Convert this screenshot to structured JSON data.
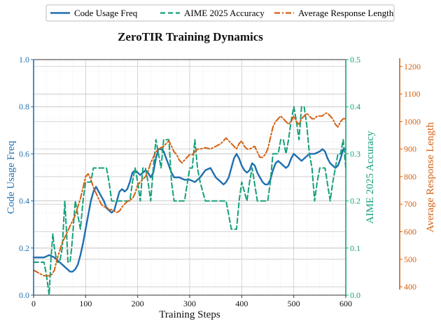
{
  "colors": {
    "code_usage": "#1f6fb0",
    "aime": "#15a07a",
    "response_length": "#d4600f",
    "grid_major": "#c8c8c8",
    "grid_minor": "#ececec",
    "axis": "#333333"
  },
  "chart_data": {
    "type": "line",
    "title": "ZeroTIR Training Dynamics",
    "xlabel": "Training Steps",
    "xlim": [
      0,
      600
    ],
    "x_ticks": [
      "0",
      "100",
      "200",
      "300",
      "400",
      "500",
      "600"
    ],
    "grid": true,
    "legend_position": "top",
    "axes": {
      "left": {
        "label": "Code Usage Freq",
        "ylim": [
          0.0,
          1.0
        ],
        "ticks": [
          "0.0",
          "0.2",
          "0.4",
          "0.6",
          "0.8",
          "1.0"
        ]
      },
      "right_inner": {
        "label": "AIME 2025 Accuracy",
        "ylim": [
          0.0,
          0.5
        ],
        "ticks": [
          "0.0",
          "0.1",
          "0.2",
          "0.3",
          "0.4",
          "0.5"
        ]
      },
      "right_outer": {
        "label": "Average Response Length",
        "ylim": [
          390,
          1230
        ],
        "ticks": [
          "400",
          "500",
          "600",
          "700",
          "800",
          "900",
          "1000",
          "1100",
          "1200"
        ]
      }
    },
    "series": [
      {
        "name": "Code Usage Freq",
        "axis": "left",
        "style": "solid",
        "color": "#1f6fb0",
        "x": [
          0,
          10,
          20,
          30,
          40,
          50,
          60,
          70,
          75,
          80,
          85,
          90,
          95,
          100,
          105,
          110,
          115,
          120,
          125,
          130,
          135,
          140,
          145,
          150,
          155,
          160,
          165,
          170,
          175,
          180,
          185,
          190,
          195,
          200,
          205,
          210,
          215,
          220,
          225,
          230,
          235,
          240,
          245,
          250,
          255,
          260,
          265,
          270,
          280,
          290,
          300,
          310,
          320,
          330,
          340,
          350,
          360,
          365,
          370,
          375,
          380,
          385,
          390,
          395,
          400,
          405,
          410,
          415,
          420,
          425,
          430,
          435,
          440,
          445,
          450,
          455,
          460,
          465,
          470,
          475,
          480,
          485,
          490,
          495,
          500,
          505,
          510,
          515,
          520,
          530,
          540,
          550,
          555,
          560,
          565,
          570,
          575,
          580,
          585,
          590,
          595,
          600
        ],
        "values": [
          0.16,
          0.16,
          0.16,
          0.17,
          0.16,
          0.14,
          0.12,
          0.1,
          0.1,
          0.11,
          0.13,
          0.17,
          0.22,
          0.28,
          0.34,
          0.4,
          0.44,
          0.46,
          0.44,
          0.42,
          0.4,
          0.37,
          0.36,
          0.35,
          0.36,
          0.4,
          0.44,
          0.45,
          0.44,
          0.45,
          0.48,
          0.52,
          0.53,
          0.52,
          0.51,
          0.52,
          0.53,
          0.52,
          0.5,
          0.52,
          0.58,
          0.62,
          0.62,
          0.61,
          0.58,
          0.55,
          0.52,
          0.5,
          0.5,
          0.49,
          0.49,
          0.48,
          0.5,
          0.53,
          0.54,
          0.5,
          0.48,
          0.47,
          0.48,
          0.5,
          0.54,
          0.58,
          0.6,
          0.58,
          0.55,
          0.53,
          0.52,
          0.53,
          0.56,
          0.55,
          0.52,
          0.5,
          0.48,
          0.47,
          0.47,
          0.49,
          0.53,
          0.56,
          0.57,
          0.56,
          0.55,
          0.54,
          0.55,
          0.58,
          0.6,
          0.59,
          0.58,
          0.57,
          0.58,
          0.6,
          0.6,
          0.61,
          0.62,
          0.61,
          0.58,
          0.56,
          0.55,
          0.54,
          0.55,
          0.58,
          0.62,
          0.62
        ]
      },
      {
        "name": "AIME 2025 Accuracy",
        "axis": "right_inner",
        "style": "dashed",
        "color": "#15a07a",
        "x": [
          0,
          10,
          20,
          25,
          30,
          33,
          37,
          40,
          45,
          50,
          55,
          60,
          63,
          66,
          70,
          73,
          76,
          80,
          85,
          90,
          95,
          100,
          105,
          110,
          115,
          120,
          125,
          130,
          135,
          140,
          145,
          150,
          155,
          160,
          165,
          170,
          175,
          180,
          185,
          190,
          195,
          200,
          205,
          210,
          215,
          220,
          225,
          230,
          235,
          240,
          245,
          250,
          255,
          260,
          265,
          270,
          275,
          280,
          290,
          300,
          305,
          310,
          315,
          320,
          330,
          340,
          350,
          360,
          370,
          375,
          380,
          385,
          390,
          395,
          400,
          410,
          415,
          420,
          430,
          440,
          450,
          455,
          460,
          465,
          470,
          475,
          480,
          485,
          490,
          495,
          500,
          505,
          510,
          515,
          520,
          525,
          530,
          535,
          540,
          545,
          550,
          560,
          570,
          575,
          580,
          585,
          590,
          595,
          600
        ],
        "values": [
          0.07,
          0.07,
          0.07,
          0.04,
          0.0,
          0.07,
          0.13,
          0.1,
          0.07,
          0.07,
          0.1,
          0.2,
          0.14,
          0.07,
          0.07,
          0.1,
          0.14,
          0.2,
          0.17,
          0.14,
          0.2,
          0.24,
          0.24,
          0.24,
          0.27,
          0.27,
          0.27,
          0.27,
          0.27,
          0.27,
          0.24,
          0.2,
          0.2,
          0.2,
          0.2,
          0.2,
          0.2,
          0.2,
          0.2,
          0.24,
          0.27,
          0.24,
          0.2,
          0.27,
          0.27,
          0.24,
          0.2,
          0.27,
          0.33,
          0.3,
          0.27,
          0.33,
          0.33,
          0.33,
          0.24,
          0.2,
          0.2,
          0.2,
          0.2,
          0.27,
          0.27,
          0.33,
          0.27,
          0.24,
          0.2,
          0.2,
          0.2,
          0.2,
          0.2,
          0.17,
          0.14,
          0.14,
          0.14,
          0.2,
          0.24,
          0.2,
          0.24,
          0.27,
          0.2,
          0.2,
          0.2,
          0.24,
          0.3,
          0.3,
          0.3,
          0.33,
          0.33,
          0.3,
          0.33,
          0.37,
          0.4,
          0.37,
          0.33,
          0.4,
          0.4,
          0.36,
          0.3,
          0.27,
          0.2,
          0.24,
          0.27,
          0.27,
          0.2,
          0.24,
          0.27,
          0.3,
          0.3,
          0.33,
          0.27
        ]
      },
      {
        "name": "Average Response Length",
        "axis": "right_outer",
        "style": "dashdot",
        "color": "#d4600f",
        "x": [
          0,
          10,
          20,
          30,
          35,
          40,
          45,
          50,
          55,
          60,
          65,
          70,
          75,
          80,
          85,
          90,
          95,
          100,
          105,
          110,
          115,
          120,
          125,
          130,
          135,
          140,
          145,
          150,
          155,
          160,
          165,
          170,
          175,
          180,
          185,
          190,
          195,
          200,
          205,
          210,
          215,
          220,
          225,
          230,
          235,
          240,
          245,
          250,
          255,
          260,
          265,
          270,
          275,
          280,
          285,
          290,
          295,
          300,
          305,
          310,
          315,
          320,
          330,
          340,
          350,
          360,
          370,
          375,
          380,
          385,
          390,
          395,
          400,
          405,
          410,
          415,
          420,
          425,
          430,
          435,
          440,
          445,
          450,
          455,
          460,
          465,
          470,
          475,
          480,
          485,
          490,
          495,
          500,
          505,
          510,
          515,
          520,
          525,
          530,
          535,
          540,
          545,
          550,
          555,
          560,
          565,
          570,
          575,
          580,
          585,
          590,
          595,
          600
        ],
        "values": [
          460,
          450,
          440,
          440,
          445,
          460,
          500,
          530,
          560,
          580,
          600,
          620,
          640,
          660,
          690,
          720,
          760,
          800,
          810,
          790,
          760,
          740,
          720,
          700,
          690,
          690,
          680,
          680,
          675,
          670,
          675,
          690,
          700,
          710,
          715,
          720,
          740,
          770,
          780,
          790,
          800,
          820,
          850,
          870,
          890,
          900,
          905,
          910,
          920,
          930,
          910,
          890,
          880,
          860,
          850,
          860,
          870,
          880,
          880,
          890,
          900,
          900,
          905,
          900,
          910,
          920,
          940,
          930,
          920,
          910,
          900,
          920,
          930,
          910,
          900,
          900,
          905,
          910,
          890,
          870,
          870,
          880,
          900,
          940,
          980,
          1000,
          1010,
          1020,
          1010,
          1000,
          990,
          1000,
          1020,
          1000,
          990,
          1010,
          1020,
          1030,
          1020,
          1010,
          1010,
          1020,
          1020,
          1020,
          1030,
          1030,
          1020,
          1010,
          990,
          980,
          1000,
          1010,
          1010
        ]
      }
    ]
  }
}
